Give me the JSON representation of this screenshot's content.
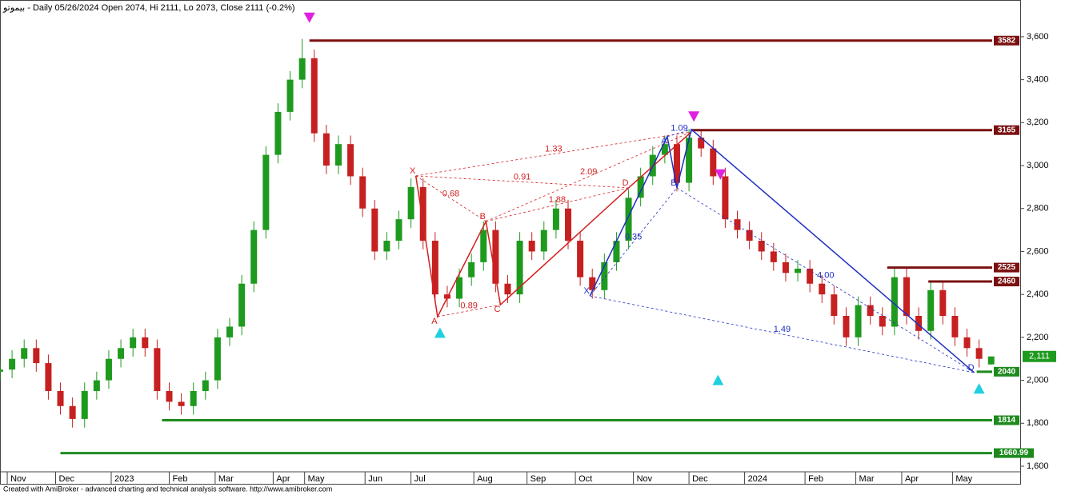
{
  "chart_data": {
    "type": "candlestick",
    "title": "بيموتو - Daily 05/26/2024 Open 2074, Hi 2111, Lo 2073, Close 2111 (-0.2%)",
    "footer": "Created with AmiBroker - advanced charting and technical analysis software. http://www.amibroker.com",
    "up_color": "#1e9a1e",
    "down_color": "#c62020",
    "xlim": [
      0,
      422
    ],
    "ylim": [
      1518,
      3771
    ],
    "yticks": [
      {
        "value": 1600,
        "label": "1,600"
      },
      {
        "value": 1800,
        "label": "1,800"
      },
      {
        "value": 2000,
        "label": "2,000"
      },
      {
        "value": 2200,
        "label": "2,200"
      },
      {
        "value": 2400,
        "label": "2,400"
      },
      {
        "value": 2600,
        "label": "2,600"
      },
      {
        "value": 2800,
        "label": "2,800"
      },
      {
        "value": 3000,
        "label": "3,000"
      },
      {
        "value": 3200,
        "label": "3,200"
      },
      {
        "value": 3400,
        "label": "3,400"
      },
      {
        "value": 3600,
        "label": "3,600"
      }
    ],
    "xticks": [
      {
        "value": 3,
        "label": "Nov"
      },
      {
        "value": 23,
        "label": "Dec"
      },
      {
        "value": 46,
        "label": "2023"
      },
      {
        "value": 70,
        "label": "Feb"
      },
      {
        "value": 89,
        "label": "Mar"
      },
      {
        "value": 113,
        "label": "Apr"
      },
      {
        "value": 126,
        "label": "May"
      },
      {
        "value": 151,
        "label": "Jun"
      },
      {
        "value": 170,
        "label": "Jul"
      },
      {
        "value": 196,
        "label": "Aug"
      },
      {
        "value": 218,
        "label": "Sep"
      },
      {
        "value": 238,
        "label": "Oct"
      },
      {
        "value": 262,
        "label": "Nov"
      },
      {
        "value": 285,
        "label": "Dec"
      },
      {
        "value": 308,
        "label": "2024"
      },
      {
        "value": 333,
        "label": "Feb"
      },
      {
        "value": 354,
        "label": "Mar"
      },
      {
        "value": 373,
        "label": "Apr"
      },
      {
        "value": 394,
        "label": "May"
      }
    ],
    "x": [
      0,
      5,
      10,
      15,
      20,
      25,
      30,
      35,
      40,
      45,
      50,
      55,
      60,
      65,
      70,
      75,
      80,
      85,
      90,
      95,
      100,
      105,
      110,
      115,
      120,
      125,
      130,
      135,
      140,
      145,
      150,
      155,
      160,
      165,
      170,
      175,
      180,
      185,
      190,
      195,
      200,
      205,
      210,
      215,
      220,
      225,
      230,
      235,
      240,
      245,
      250,
      255,
      260,
      265,
      270,
      275,
      280,
      285,
      290,
      295,
      300,
      305,
      310,
      315,
      320,
      325,
      330,
      335,
      340,
      345,
      350,
      355,
      360,
      365,
      370,
      375,
      380,
      385,
      390,
      395,
      400,
      405,
      410
    ],
    "open": [
      2040,
      2050,
      2100,
      2150,
      2080,
      1950,
      1880,
      1820,
      1950,
      2000,
      2100,
      2150,
      2200,
      2150,
      1950,
      1900,
      1880,
      1950,
      2000,
      2200,
      2250,
      2450,
      2700,
      3050,
      3250,
      3400,
      3500,
      3150,
      3000,
      3100,
      2950,
      2800,
      2600,
      2650,
      2750,
      2900,
      2650,
      2400,
      2380,
      2480,
      2550,
      2700,
      2450,
      2400,
      2650,
      2600,
      2700,
      2800,
      2650,
      2480,
      2420,
      2550,
      2650,
      2850,
      2950,
      3050,
      3100,
      2920,
      3130,
      3080,
      2950,
      2750,
      2700,
      2650,
      2600,
      2550,
      2500,
      2520,
      2450,
      2400,
      2300,
      2200,
      2350,
      2300,
      2250,
      2480,
      2300,
      2230,
      2420,
      2300,
      2200,
      2150,
      2074
    ],
    "high": [
      2090,
      2140,
      2190,
      2190,
      2120,
      1990,
      1920,
      1990,
      2040,
      2140,
      2190,
      2240,
      2240,
      2190,
      1990,
      1940,
      1990,
      2040,
      2240,
      2290,
      2490,
      2740,
      3090,
      3290,
      3440,
      3590,
      3540,
      3190,
      3140,
      3140,
      2990,
      2840,
      2690,
      2790,
      2940,
      2940,
      2690,
      2440,
      2520,
      2590,
      2740,
      2740,
      2490,
      2690,
      2690,
      2740,
      2840,
      2840,
      2690,
      2520,
      2590,
      2690,
      2890,
      2990,
      3090,
      3140,
      3140,
      3170,
      3170,
      3120,
      2990,
      2790,
      2740,
      2690,
      2640,
      2590,
      2560,
      2560,
      2490,
      2440,
      2340,
      2390,
      2390,
      2340,
      2520,
      2520,
      2340,
      2460,
      2460,
      2340,
      2240,
      2190,
      2111
    ],
    "low": [
      2000,
      2010,
      2060,
      2040,
      1910,
      1840,
      1780,
      1780,
      1910,
      1960,
      2060,
      2110,
      2110,
      1910,
      1860,
      1840,
      1840,
      1910,
      1960,
      2160,
      2210,
      2410,
      2660,
      3010,
      3210,
      3360,
      3110,
      2960,
      2960,
      2910,
      2760,
      2560,
      2560,
      2610,
      2710,
      2610,
      2360,
      2340,
      2340,
      2440,
      2510,
      2410,
      2360,
      2360,
      2560,
      2560,
      2660,
      2610,
      2440,
      2380,
      2380,
      2510,
      2610,
      2810,
      2910,
      3010,
      2880,
      2880,
      3040,
      2910,
      2710,
      2660,
      2610,
      2560,
      2510,
      2460,
      2460,
      2410,
      2360,
      2260,
      2160,
      2160,
      2260,
      2210,
      2210,
      2260,
      2190,
      2190,
      2260,
      2160,
      2110,
      2060,
      2073
    ],
    "close": [
      2050,
      2100,
      2150,
      2080,
      1950,
      1880,
      1820,
      1950,
      2000,
      2100,
      2150,
      2200,
      2150,
      1950,
      1900,
      1880,
      1950,
      2000,
      2200,
      2250,
      2450,
      2700,
      3050,
      3250,
      3400,
      3500,
      3150,
      3000,
      3100,
      2950,
      2800,
      2600,
      2650,
      2750,
      2900,
      2650,
      2400,
      2380,
      2480,
      2550,
      2700,
      2450,
      2400,
      2650,
      2600,
      2700,
      2800,
      2650,
      2480,
      2420,
      2550,
      2650,
      2850,
      2950,
      3050,
      3100,
      2920,
      3130,
      3080,
      2950,
      2750,
      2700,
      2650,
      2600,
      2550,
      2500,
      2520,
      2450,
      2400,
      2300,
      2200,
      2350,
      2300,
      2250,
      2480,
      2300,
      2230,
      2420,
      2300,
      2200,
      2150,
      2100,
      2111
    ],
    "last_price": {
      "value": 2111,
      "label": "2,111",
      "color": "#1e9a1e"
    },
    "levels": [
      {
        "value": 3582,
        "x_start": 128,
        "color": "#7a1010"
      },
      {
        "value": 3165,
        "x_start": 286,
        "color": "#7a1010"
      },
      {
        "value": 2525,
        "x_start": 367,
        "color": "#7a1010"
      },
      {
        "value": 2460,
        "x_start": 384,
        "color": "#7a1010"
      },
      {
        "value": 2040,
        "x_start": 404,
        "color": "#1e8a1e"
      },
      {
        "value": 1814,
        "x_start": 67,
        "color": "#1e8a1e"
      },
      {
        "value": 1660.99,
        "x_start": 25,
        "color": "#1e8a1e"
      }
    ],
    "patterns": [
      {
        "color": "#d42020",
        "points": [
          {
            "label": "X",
            "x": 172,
            "y": 2952
          },
          {
            "label": "A",
            "x": 181,
            "y": 2296
          },
          {
            "label": "B",
            "x": 201,
            "y": 2740
          },
          {
            "label": "C",
            "x": 207,
            "y": 2352
          },
          {
            "label": "D",
            "x": 260,
            "y": 2896
          },
          {
            "label": null,
            "x": 286,
            "y": 3157
          }
        ],
        "ratios": [
          {
            "from": 0,
            "to": 2,
            "label": "0.68"
          },
          {
            "from": 1,
            "to": 3,
            "label": "0.89"
          },
          {
            "from": 0,
            "to": 5,
            "label": "1.33"
          },
          {
            "from": 0,
            "to": 4,
            "label": "0.91"
          },
          {
            "from": 2,
            "to": 5,
            "label": "2.09"
          },
          {
            "from": 2,
            "to": 4,
            "label": "1.88"
          }
        ]
      },
      {
        "color": "#2030c0",
        "points": [
          {
            "label": "X",
            "x": 244,
            "y": 2393
          },
          {
            "label": "A",
            "x": 276,
            "y": 3135
          },
          {
            "label": "B",
            "x": 280,
            "y": 2896
          },
          {
            "label": null,
            "x": 286,
            "y": 3168
          },
          {
            "label": "D",
            "x": 403,
            "y": 2036
          }
        ],
        "ratios": [
          {
            "from": 0,
            "to": 2,
            "label": "0.35"
          },
          {
            "from": 1,
            "to": 3,
            "label": "1.09"
          },
          {
            "from": 2,
            "to": 4,
            "label": "4.00"
          },
          {
            "from": 0,
            "to": 4,
            "label": "1.49"
          }
        ]
      }
    ],
    "signals": [
      {
        "direction": "down",
        "x": 128,
        "y": 3690,
        "color": "#e020e0"
      },
      {
        "direction": "down",
        "x": 287,
        "y": 3230,
        "color": "#e020e0"
      },
      {
        "direction": "down",
        "x": 298,
        "y": 2960,
        "color": "#e020e0"
      },
      {
        "direction": "up",
        "x": 182,
        "y": 2220,
        "color": "#20d0e0"
      },
      {
        "direction": "up",
        "x": 297,
        "y": 2000,
        "color": "#20d0e0"
      },
      {
        "direction": "up",
        "x": 405,
        "y": 1960,
        "color": "#20d0e0"
      }
    ]
  }
}
